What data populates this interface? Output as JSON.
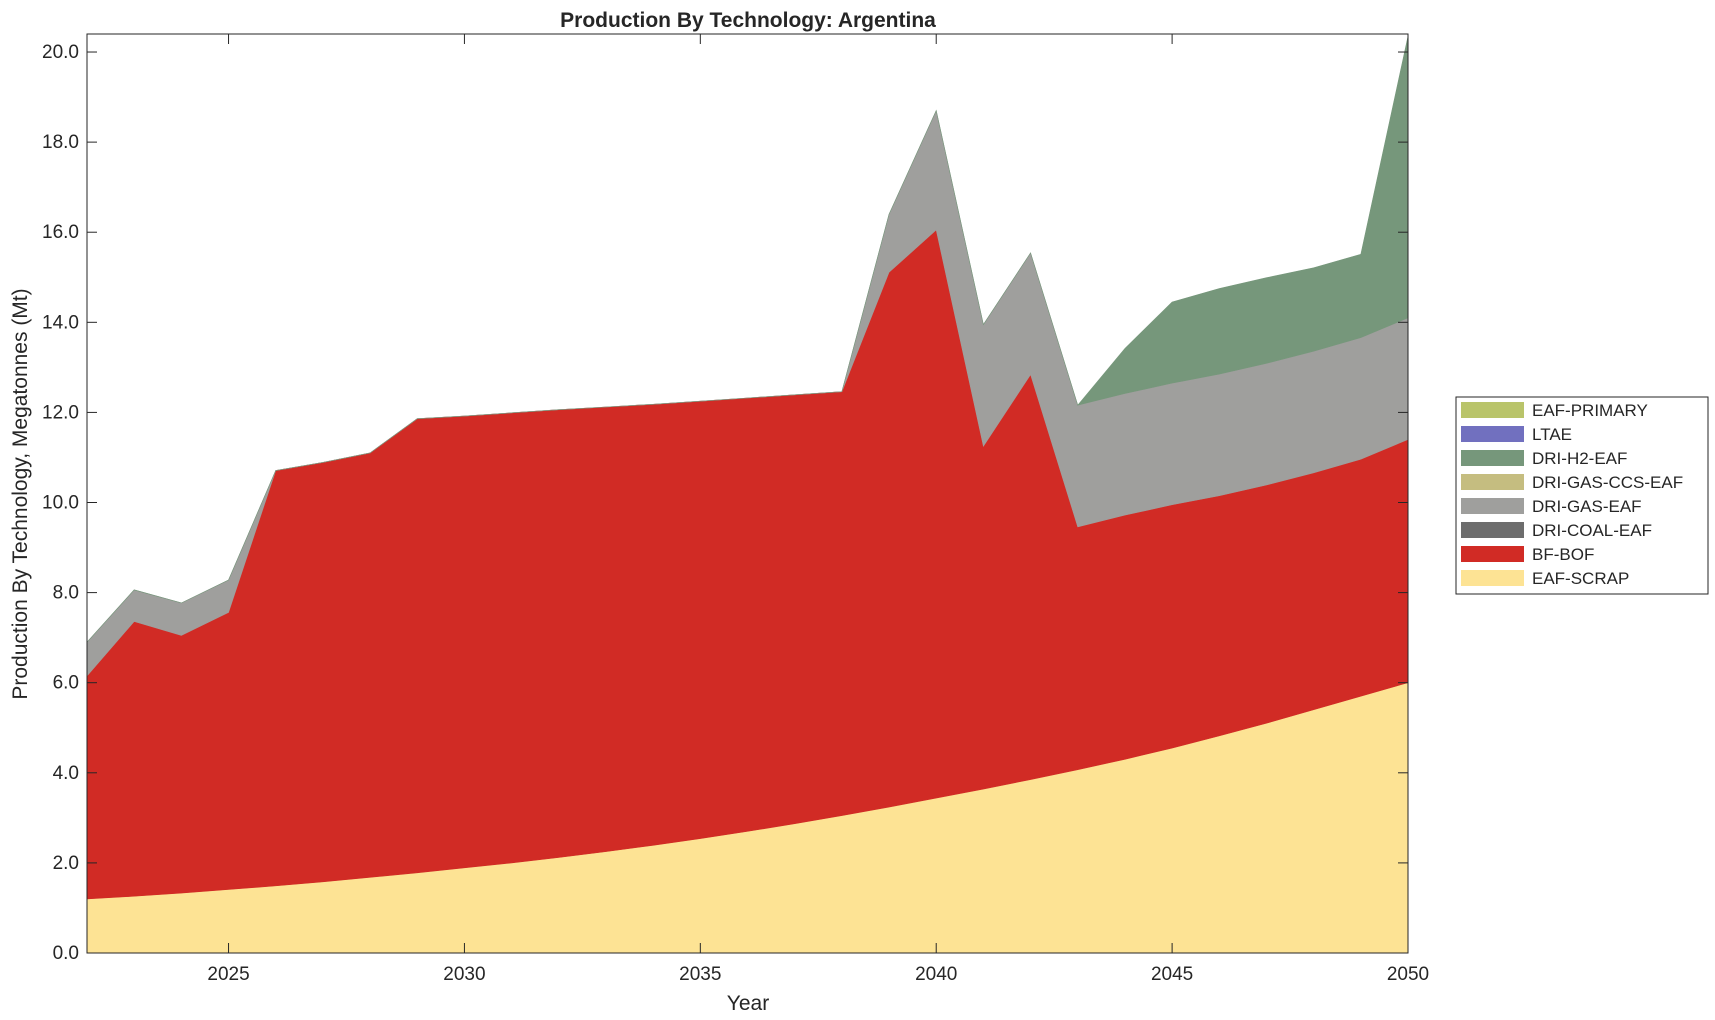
{
  "chart_data": {
    "type": "area",
    "stacked": true,
    "title": "Production By Technology: Argentina",
    "xlabel": "Year",
    "ylabel": "Production By Technology, Megatonnes (Mt)",
    "xlim": [
      2022,
      2050
    ],
    "ylim": [
      0,
      20.4
    ],
    "xticks": [
      2025,
      2030,
      2035,
      2040,
      2045,
      2050
    ],
    "yticks": [
      0,
      2,
      4,
      6,
      8,
      10,
      12,
      14,
      16,
      18,
      20
    ],
    "xtick_labels": [
      "2025",
      "2030",
      "2035",
      "2040",
      "2045",
      "2050"
    ],
    "ytick_labels": [
      "0.0",
      "2.0",
      "4.0",
      "6.0",
      "8.0",
      "10.0",
      "12.0",
      "14.0",
      "16.0",
      "18.0",
      "20.0"
    ],
    "legend_position": "right",
    "x": [
      2022,
      2023,
      2024,
      2025,
      2026,
      2027,
      2028,
      2029,
      2030,
      2031,
      2032,
      2033,
      2034,
      2035,
      2036,
      2037,
      2038,
      2039,
      2040,
      2041,
      2042,
      2043,
      2044,
      2045,
      2046,
      2047,
      2048,
      2049,
      2050
    ],
    "series": [
      {
        "name": "EAF-SCRAP",
        "color": "#fde394",
        "values": [
          1.2,
          1.26,
          1.33,
          1.41,
          1.49,
          1.58,
          1.68,
          1.78,
          1.89,
          2.0,
          2.12,
          2.25,
          2.39,
          2.54,
          2.7,
          2.87,
          3.05,
          3.24,
          3.44,
          3.64,
          3.85,
          4.07,
          4.3,
          4.55,
          4.82,
          5.1,
          5.4,
          5.7,
          6.0
        ]
      },
      {
        "name": "BF-BOF",
        "color": "#d12b25",
        "values": [
          4.95,
          6.1,
          5.72,
          6.15,
          9.22,
          9.31,
          9.42,
          10.08,
          10.03,
          9.99,
          9.94,
          9.87,
          9.79,
          9.71,
          9.62,
          9.52,
          9.41,
          11.87,
          12.61,
          7.61,
          8.99,
          5.39,
          5.42,
          5.4,
          5.33,
          5.29,
          5.26,
          5.26,
          5.4
        ]
      },
      {
        "name": "DRI-COAL-EAF",
        "color": "#6d6d6d",
        "values": [
          0,
          0,
          0,
          0,
          0,
          0,
          0,
          0,
          0,
          0,
          0,
          0,
          0,
          0,
          0,
          0,
          0,
          0,
          0,
          0,
          0,
          0,
          0,
          0,
          0,
          0,
          0,
          0,
          0
        ]
      },
      {
        "name": "DRI-GAS-EAF",
        "color": "#9f9f9d",
        "values": [
          0.75,
          0.7,
          0.72,
          0.72,
          0,
          0,
          0,
          0,
          0,
          0,
          0,
          0,
          0,
          0,
          0,
          0,
          0,
          1.29,
          2.65,
          2.7,
          2.7,
          2.7,
          2.7,
          2.7,
          2.7,
          2.7,
          2.7,
          2.7,
          2.7
        ]
      },
      {
        "name": "DRI-GAS-CCS-EAF",
        "color": "#c5bd80",
        "values": [
          0,
          0,
          0,
          0,
          0,
          0,
          0,
          0,
          0,
          0,
          0,
          0,
          0,
          0,
          0,
          0,
          0,
          0,
          0,
          0,
          0,
          0,
          0,
          0,
          0,
          0,
          0,
          0,
          0
        ]
      },
      {
        "name": "DRI-H2-EAF",
        "color": "#76977b",
        "values": [
          0,
          0,
          0,
          0,
          0,
          0,
          0,
          0,
          0,
          0,
          0,
          0,
          0,
          0,
          0,
          0,
          0,
          0,
          0,
          0,
          0,
          0,
          1.0,
          1.8,
          1.9,
          1.9,
          1.85,
          1.85,
          6.25
        ]
      },
      {
        "name": "LTAE",
        "color": "#7170bf",
        "values": [
          0,
          0,
          0,
          0,
          0,
          0,
          0,
          0,
          0,
          0,
          0,
          0,
          0,
          0,
          0,
          0,
          0,
          0,
          0,
          0,
          0,
          0,
          0,
          0,
          0,
          0,
          0,
          0,
          0
        ]
      },
      {
        "name": "EAF-PRIMARY",
        "color": "#b9c46a",
        "values": [
          0,
          0,
          0,
          0,
          0,
          0,
          0,
          0,
          0,
          0,
          0,
          0,
          0,
          0,
          0,
          0,
          0,
          0,
          0,
          0,
          0,
          0,
          0,
          0,
          0,
          0,
          0,
          0,
          0
        ]
      }
    ],
    "legend_order": [
      "EAF-PRIMARY",
      "LTAE",
      "DRI-H2-EAF",
      "DRI-GAS-CCS-EAF",
      "DRI-GAS-EAF",
      "DRI-COAL-EAF",
      "BF-BOF",
      "EAF-SCRAP"
    ]
  }
}
